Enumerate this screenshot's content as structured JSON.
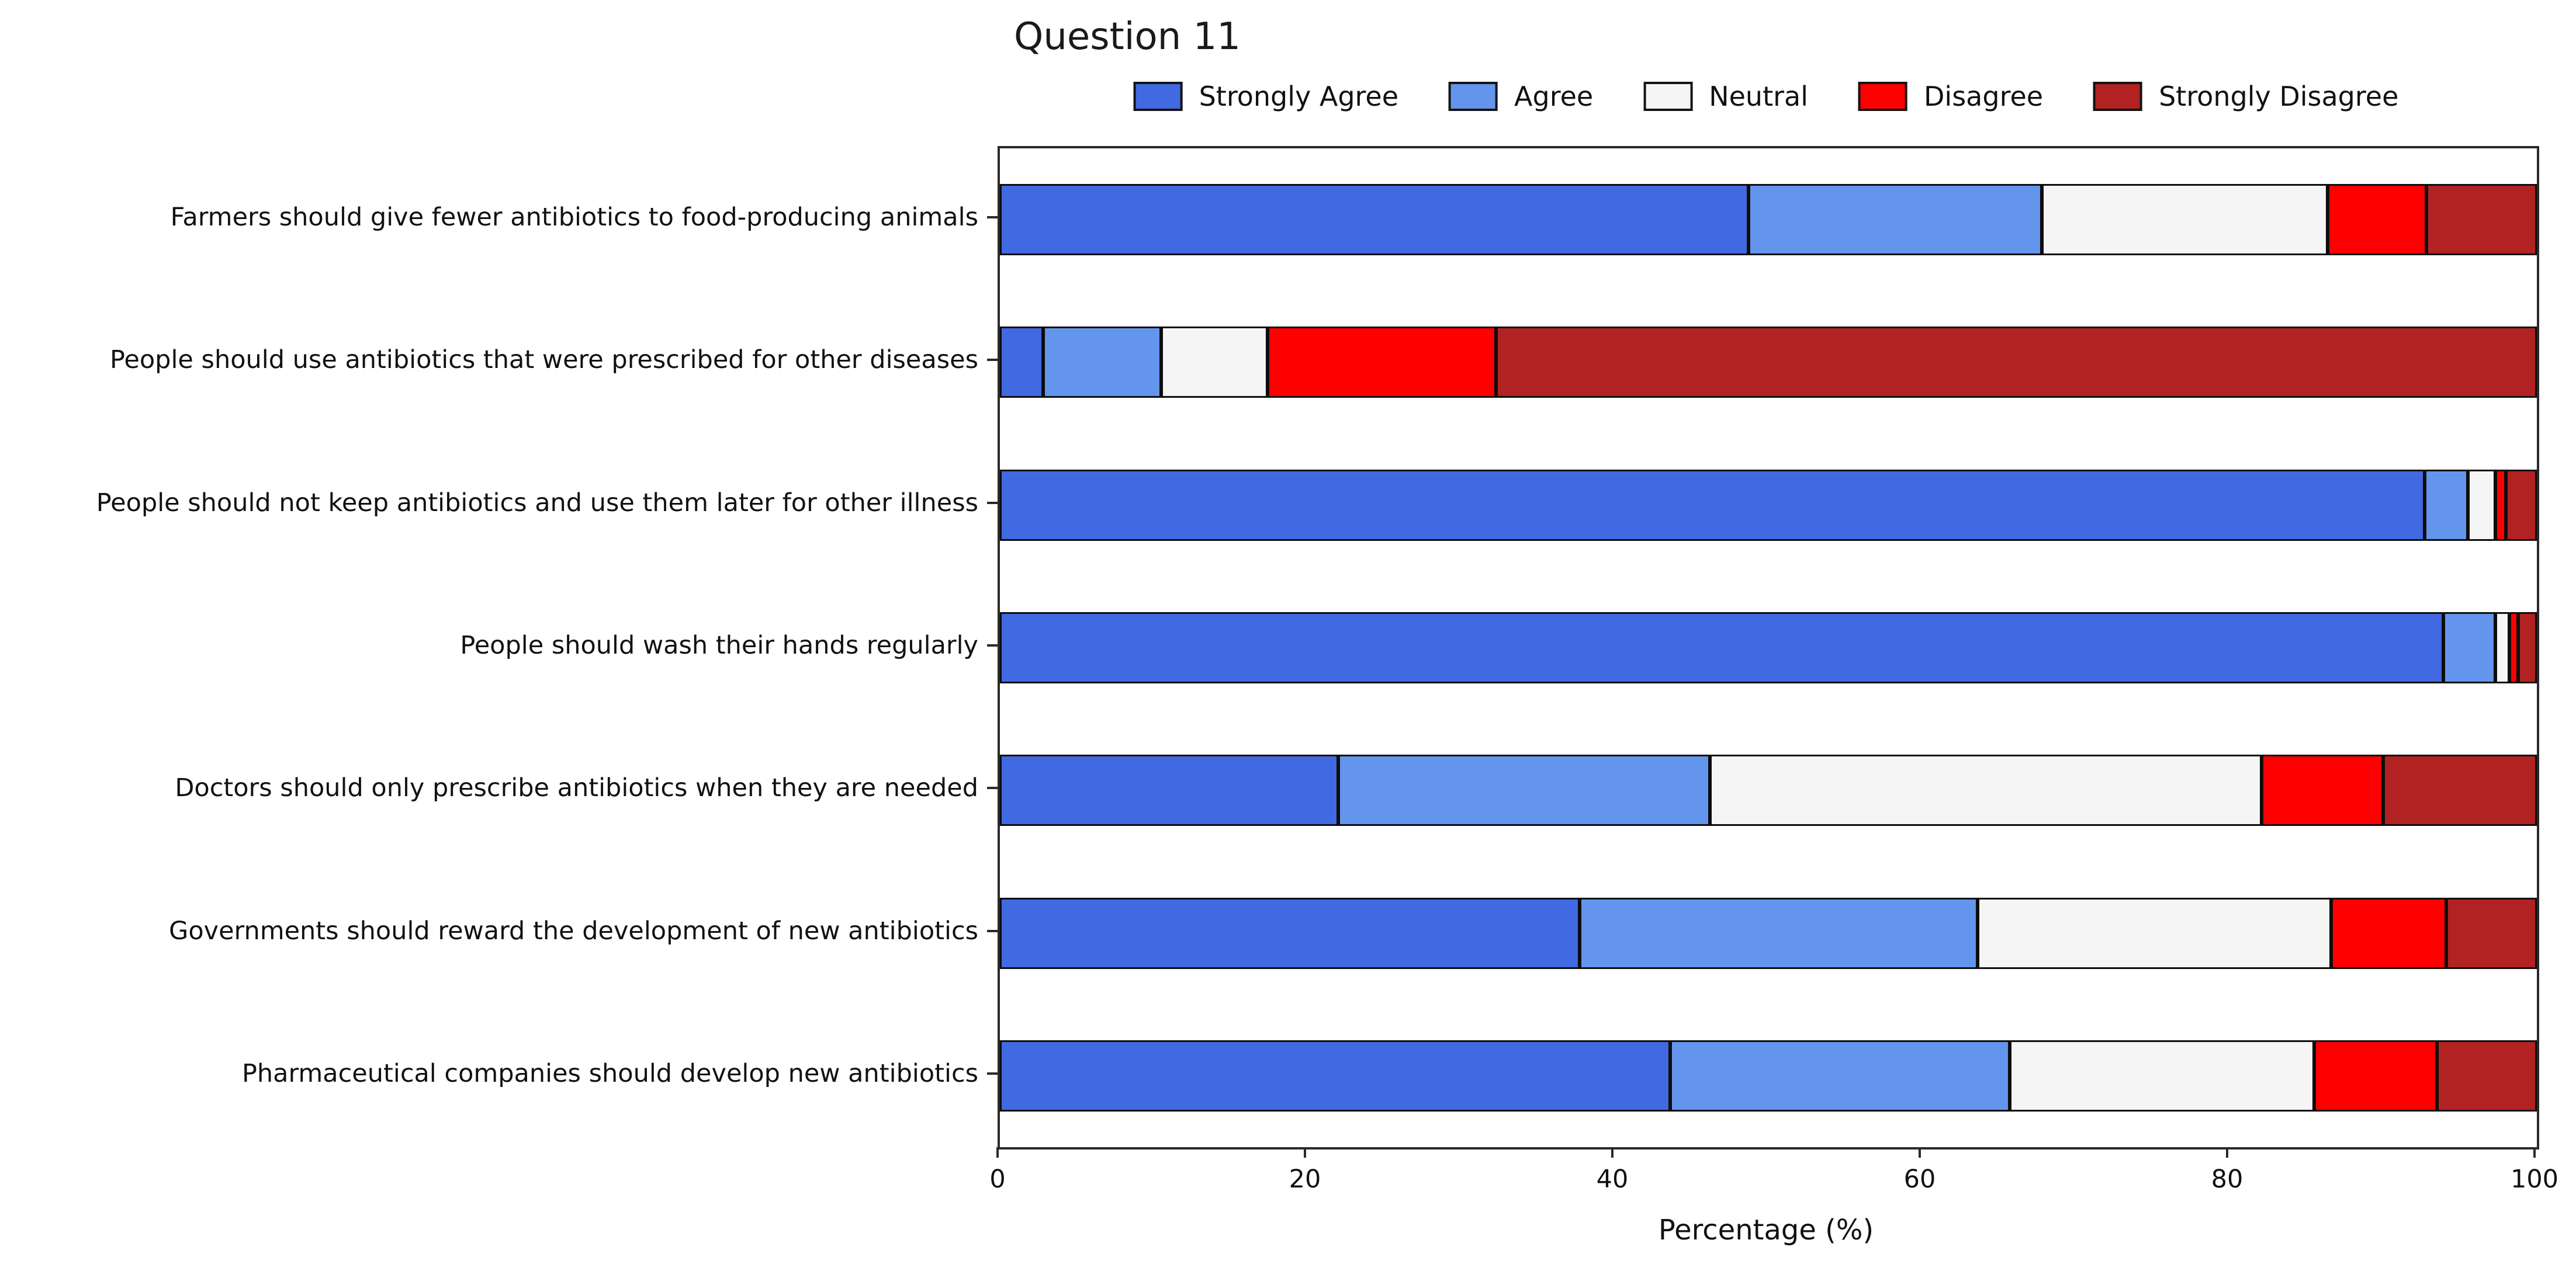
{
  "chart_data": {
    "type": "bar",
    "subtype": "horizontal-stacked",
    "title": "Question 11",
    "xlabel": "Percentage (%)",
    "xlim": [
      0,
      100
    ],
    "xticks": [
      0,
      20,
      40,
      60,
      80,
      100
    ],
    "grid": false,
    "background": "#FFFFFF",
    "bar_edge_color": "#000000",
    "bar_height_frac": 0.5,
    "legend": {
      "position": "top-center",
      "frame": false
    },
    "categories": [
      "Farmers should give fewer antibiotics to food-producing animals",
      "People should use antibiotics that were prescribed for other diseases",
      "People should not keep antibiotics and use them later for other illness",
      "People should wash their hands regularly",
      "Doctors should only prescribe antibiotics when they are needed",
      "Governments should reward the development of new antibiotics",
      "Pharmaceutical companies should develop new antibiotics"
    ],
    "series": [
      {
        "name": "Strongly Agree",
        "color": "#4169E1",
        "values": [
          48.7,
          2.8,
          92.7,
          93.9,
          22.0,
          37.7,
          43.6
        ]
      },
      {
        "name": "Agree",
        "color": "#6495ED",
        "values": [
          19.1,
          7.7,
          2.8,
          3.4,
          24.2,
          25.9,
          22.1
        ]
      },
      {
        "name": "Neutral",
        "color": "#F5F5F5",
        "values": [
          18.6,
          6.9,
          1.8,
          0.9,
          35.9,
          23.0,
          19.8
        ]
      },
      {
        "name": "Disagree",
        "color": "#FF0000",
        "values": [
          6.4,
          14.9,
          0.7,
          0.6,
          7.9,
          7.5,
          8.0
        ]
      },
      {
        "name": "Strongly Disagree",
        "color": "#B22222",
        "values": [
          7.2,
          67.7,
          2.0,
          1.2,
          10.0,
          5.9,
          6.5
        ]
      }
    ]
  }
}
